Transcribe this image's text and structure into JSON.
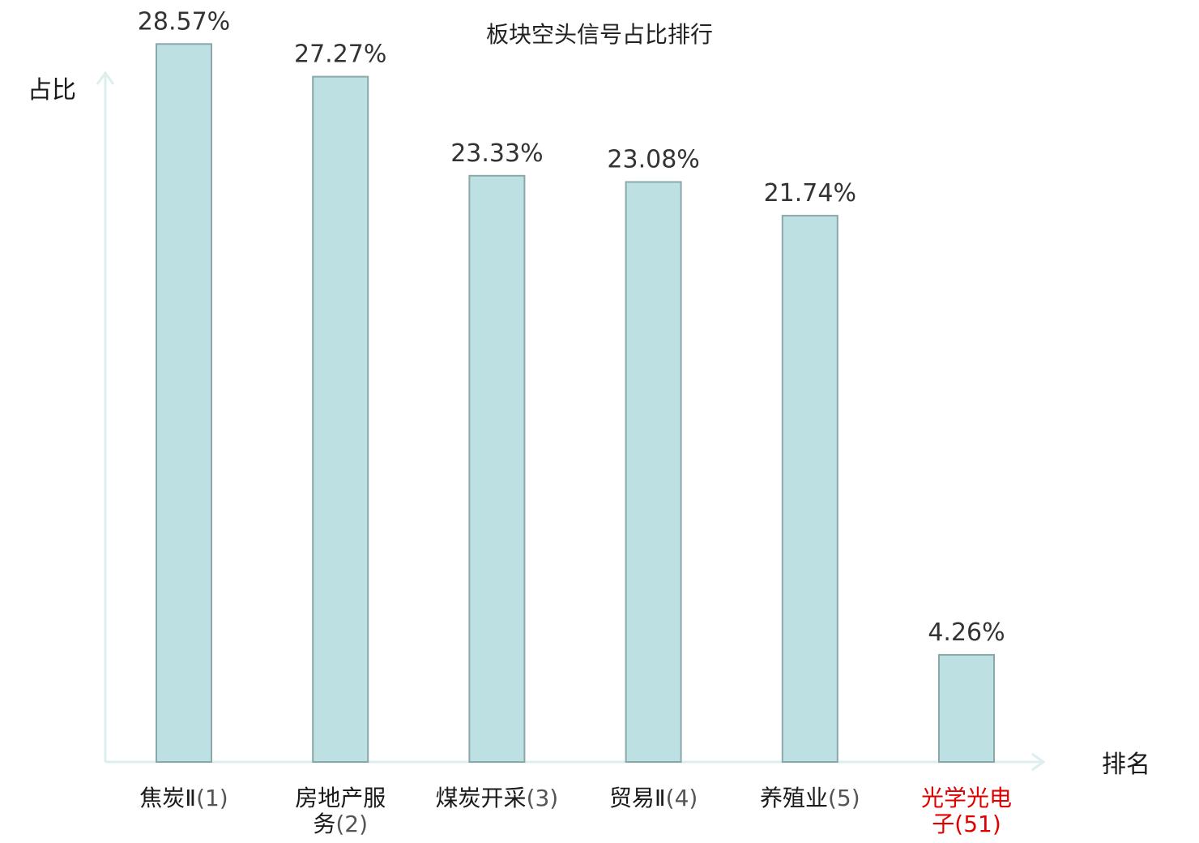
{
  "chart_data": {
    "type": "bar",
    "title": "板块空头信号占比排行",
    "ylabel": "占比",
    "xlabel": "排名",
    "ylim": [
      0,
      30
    ],
    "grid": false,
    "categories": [
      {
        "name": "焦炭Ⅱ",
        "rank": "(1)",
        "lines": [
          "焦炭Ⅱ"
        ]
      },
      {
        "name": "房地产服务",
        "rank": "(2)",
        "lines": [
          "房地产服",
          "务"
        ]
      },
      {
        "name": "煤炭开采",
        "rank": "(3)",
        "lines": [
          "煤炭开采"
        ]
      },
      {
        "name": "贸易Ⅱ",
        "rank": "(4)",
        "lines": [
          "贸易Ⅱ"
        ]
      },
      {
        "name": "养殖业",
        "rank": "(5)",
        "lines": [
          "养殖业"
        ]
      },
      {
        "name": "光学光电子",
        "rank": "(51)",
        "lines": [
          "光学光电",
          "子"
        ],
        "highlight": true
      }
    ],
    "values": [
      28.57,
      27.27,
      23.33,
      23.08,
      21.74,
      4.26
    ],
    "value_labels": [
      "28.57%",
      "27.27%",
      "23.33%",
      "23.08%",
      "21.74%",
      "4.26%"
    ],
    "colors": {
      "bar_fill": "#bde0e3",
      "bar_stroke": "#8aa8aa",
      "axis": "#dcefee",
      "highlight": "#e00000"
    }
  }
}
